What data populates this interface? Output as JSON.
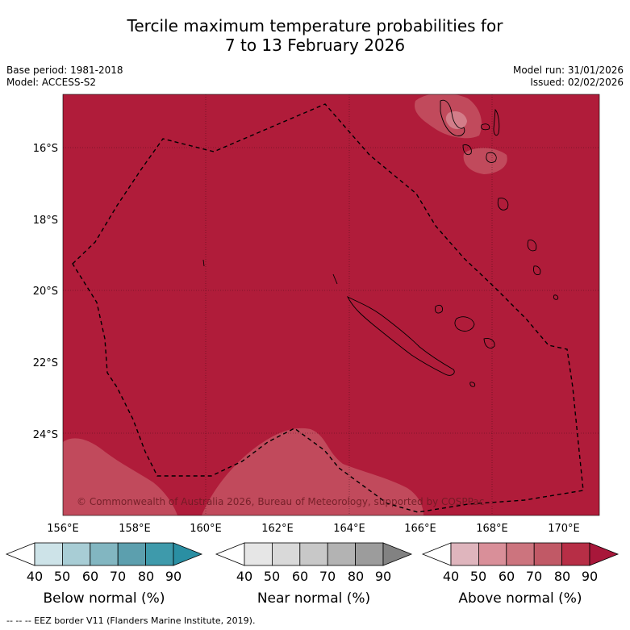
{
  "title": {
    "line1": "Tercile maximum temperature probabilities for",
    "line2": "7 to 13 February 2026"
  },
  "meta": {
    "base_period": "Base period: 1981-2018",
    "model": "Model: ACCESS-S2",
    "model_run": "Model run: 31/01/2026",
    "issued": "Issued: 02/02/2026"
  },
  "axes": {
    "lon_labels": [
      "156°E",
      "158°E",
      "160°E",
      "162°E",
      "164°E",
      "166°E",
      "168°E",
      "170°E"
    ],
    "lat_labels": [
      "16°S",
      "18°S",
      "20°S",
      "22°S",
      "24°S"
    ]
  },
  "map": {
    "background_color": "#b01c3a",
    "light_patch_color": "#c14a5c",
    "lighter_patch_color": "#d37d89",
    "credit": "© Commonwealth of Australia 2026, Bureau of Meteorology, supported by COSPPac"
  },
  "colorbars": [
    {
      "name": "below",
      "title": "Below normal (%)",
      "ticks": [
        "40",
        "50",
        "60",
        "70",
        "80",
        "90"
      ],
      "colors": [
        "#ffffff",
        "#cde3e8",
        "#a8cdd5",
        "#82b6c1",
        "#5c9fae",
        "#3e9aab",
        "#2a8fa3"
      ]
    },
    {
      "name": "near",
      "title": "Near normal (%)",
      "ticks": [
        "40",
        "50",
        "60",
        "70",
        "80",
        "90"
      ],
      "colors": [
        "#ffffff",
        "#e6e6e6",
        "#d9d9d9",
        "#c8c8c8",
        "#b3b3b3",
        "#9c9c9c",
        "#828282"
      ]
    },
    {
      "name": "above",
      "title": "Above normal (%)",
      "ticks": [
        "40",
        "50",
        "60",
        "70",
        "80",
        "90"
      ],
      "colors": [
        "#ffffff",
        "#dfb5bd",
        "#d98f99",
        "#cc747e",
        "#c15966",
        "#b72e46",
        "#a8173a"
      ]
    }
  ],
  "footnote": "--  --  -- EEZ border V11 (Flanders Marine Institute, 2019)."
}
